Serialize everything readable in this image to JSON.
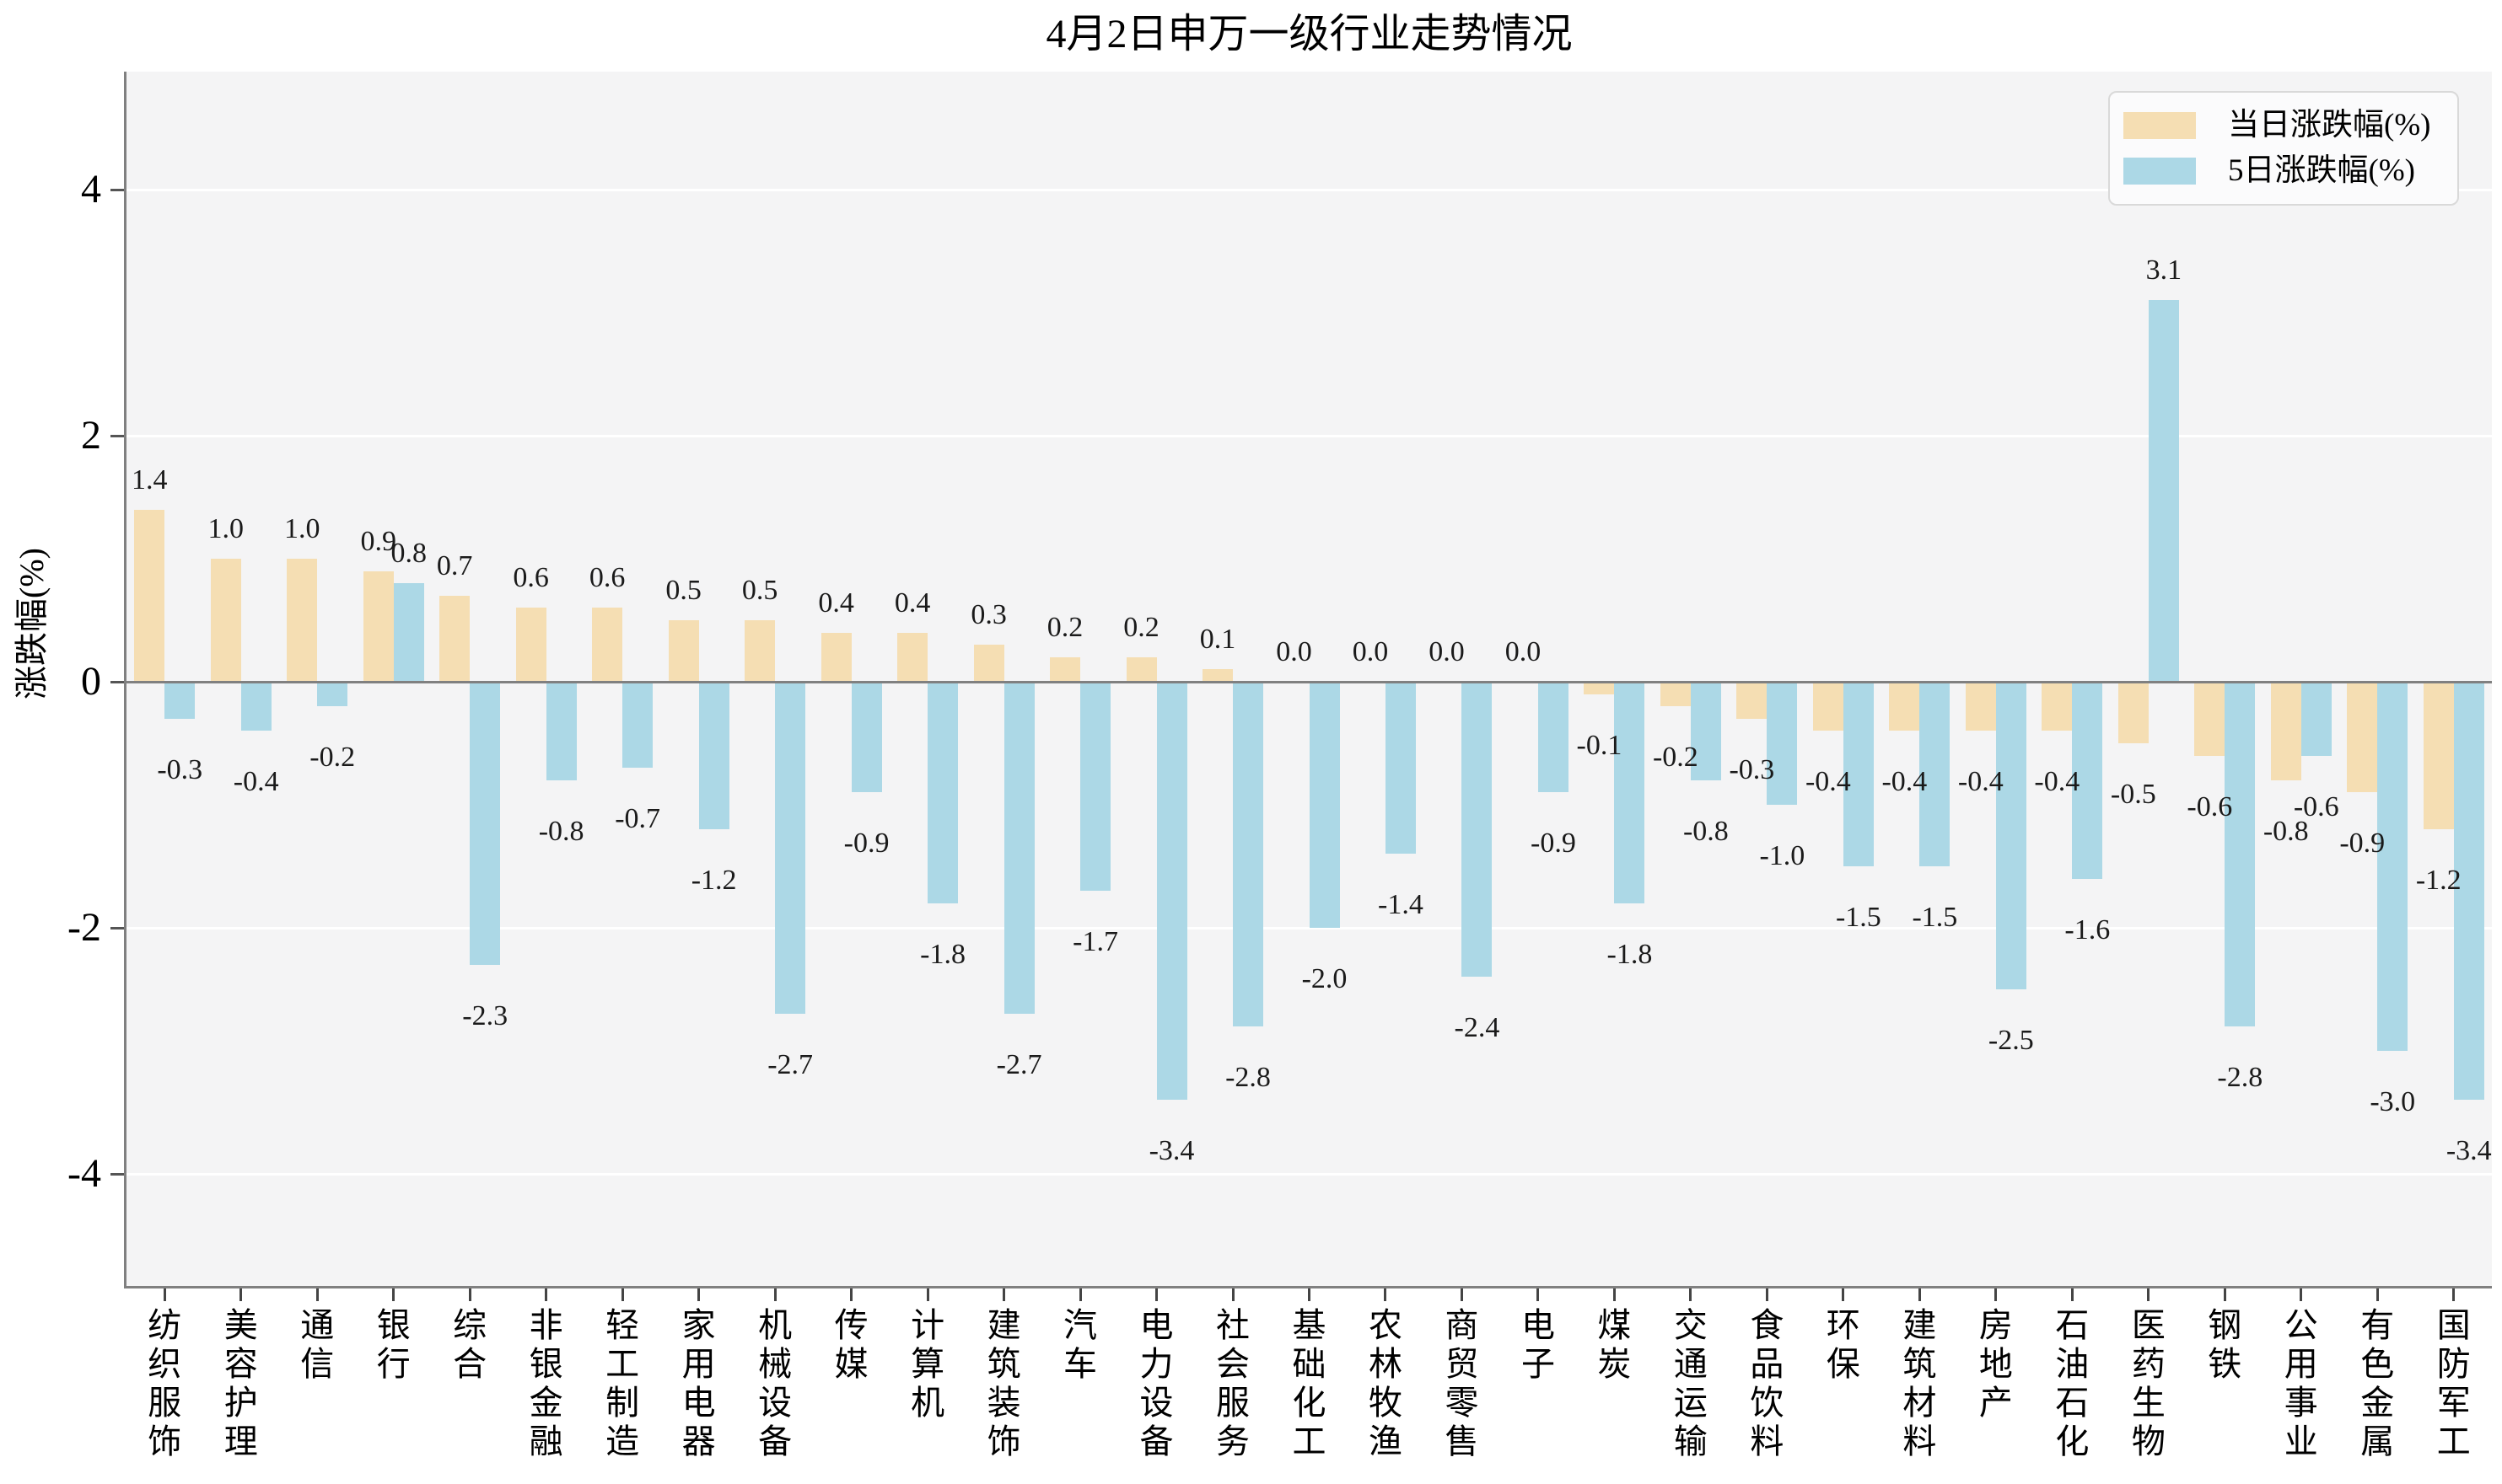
{
  "title": "4月2日申万一级行业走势情况",
  "chart_data": {
    "type": "bar",
    "title": "4月2日申万一级行业走势情况",
    "xlabel": "",
    "ylabel": "涨跌幅(%)",
    "ylim": [
      -4.9,
      5.0
    ],
    "yticks": [
      4,
      2,
      0,
      -2,
      -4
    ],
    "grid": true,
    "grid_color": "#ffffff",
    "legend_position": "upper right",
    "categories": [
      "纺织服饰",
      "美容护理",
      "通信",
      "银行",
      "综合",
      "非银金融",
      "轻工制造",
      "家用电器",
      "机械设备",
      "传媒",
      "计算机",
      "建筑装饰",
      "汽车",
      "电力设备",
      "社会服务",
      "基础化工",
      "农林牧渔",
      "商贸零售",
      "电子",
      "煤炭",
      "交通运输",
      "食品饮料",
      "环保",
      "建筑材料",
      "房地产",
      "石油石化",
      "医药生物",
      "钢铁",
      "公用事业",
      "有色金属",
      "国防军工"
    ],
    "series": [
      {
        "name": "当日涨跌幅(%)",
        "color": "#f5deb3",
        "values": [
          1.4,
          1.0,
          1.0,
          0.9,
          0.7,
          0.6,
          0.6,
          0.5,
          0.5,
          0.4,
          0.4,
          0.3,
          0.2,
          0.2,
          0.1,
          0.0,
          0.0,
          0.0,
          0.0,
          -0.1,
          -0.2,
          -0.3,
          -0.4,
          -0.4,
          -0.4,
          -0.4,
          -0.5,
          -0.6,
          -0.8,
          -0.9,
          -1.2
        ]
      },
      {
        "name": "5日涨跌幅(%)",
        "color": "#acd8e6",
        "values": [
          -0.3,
          -0.4,
          -0.2,
          0.8,
          -2.3,
          -0.8,
          -0.7,
          -1.2,
          -2.7,
          -0.9,
          -1.8,
          -2.7,
          -1.7,
          -3.4,
          -2.8,
          -2.0,
          -1.4,
          -2.4,
          -0.9,
          -1.8,
          -0.8,
          -1.0,
          -1.5,
          -1.5,
          -2.5,
          -1.6,
          3.1,
          -2.8,
          -0.6,
          -3.0,
          -3.4
        ]
      }
    ],
    "value_label_decimals": 1
  },
  "colors": {
    "plot_background": "#f4f4f5",
    "page_background": "#ffffff",
    "axis": "#808080",
    "tick": "#444444",
    "grid": "#ffffff",
    "text": "#1a1a1a",
    "series_daily": "#f5deb3",
    "series_5day": "#acd8e6",
    "legend_border": "#d9d9d9",
    "legend_background": "#fbfbfc"
  }
}
